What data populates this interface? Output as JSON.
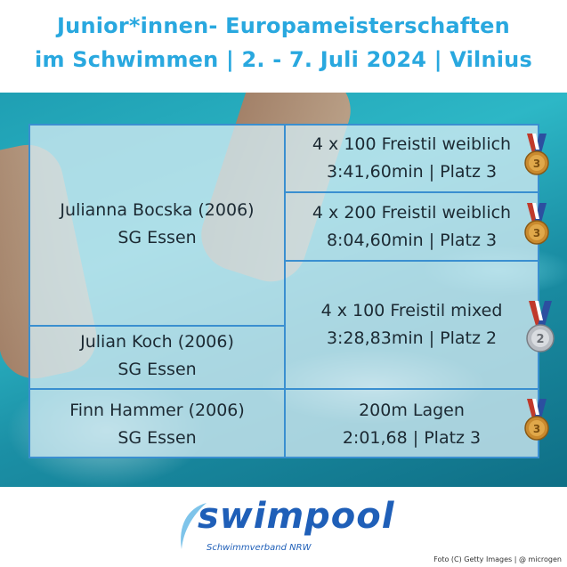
{
  "header": {
    "line1": "Junior*innen- Europameisterschaften",
    "line2": "im Schwimmen | 2. - 7. Juli 2024 | Vilnius"
  },
  "athletes": [
    {
      "name": "Julianna Bocska (2006)",
      "club": "SG Essen"
    },
    {
      "name": "Julian Koch (2006)",
      "club": "SG Essen"
    },
    {
      "name": "Finn Hammer (2006)",
      "club": "SG Essen"
    }
  ],
  "results": [
    {
      "event": "4 x 100 Freistil weiblich",
      "result": "3:41,60min | Platz 3",
      "medal": "bronze-medal-icon"
    },
    {
      "event": "4 x 200 Freistil weiblich",
      "result": "8:04,60min | Platz 3",
      "medal": "bronze-medal-icon"
    },
    {
      "event": "4 x 100 Freistil mixed",
      "result": "3:28,83min | Platz 2",
      "medal": "silver-medal-icon"
    },
    {
      "event": "200m Lagen",
      "result": "2:01,68 | Platz 3",
      "medal": "bronze-medal-icon"
    }
  ],
  "medal_numbers": {
    "bronze": "3",
    "silver": "2"
  },
  "colors": {
    "accent": "#29a8df",
    "border": "#3a8fd0",
    "logo": "#1f5fb8"
  },
  "logo": {
    "word": "swimpool",
    "sub": "Schwimmverband NRW"
  },
  "credit": "Foto (C) Getty Images | @ microgen"
}
